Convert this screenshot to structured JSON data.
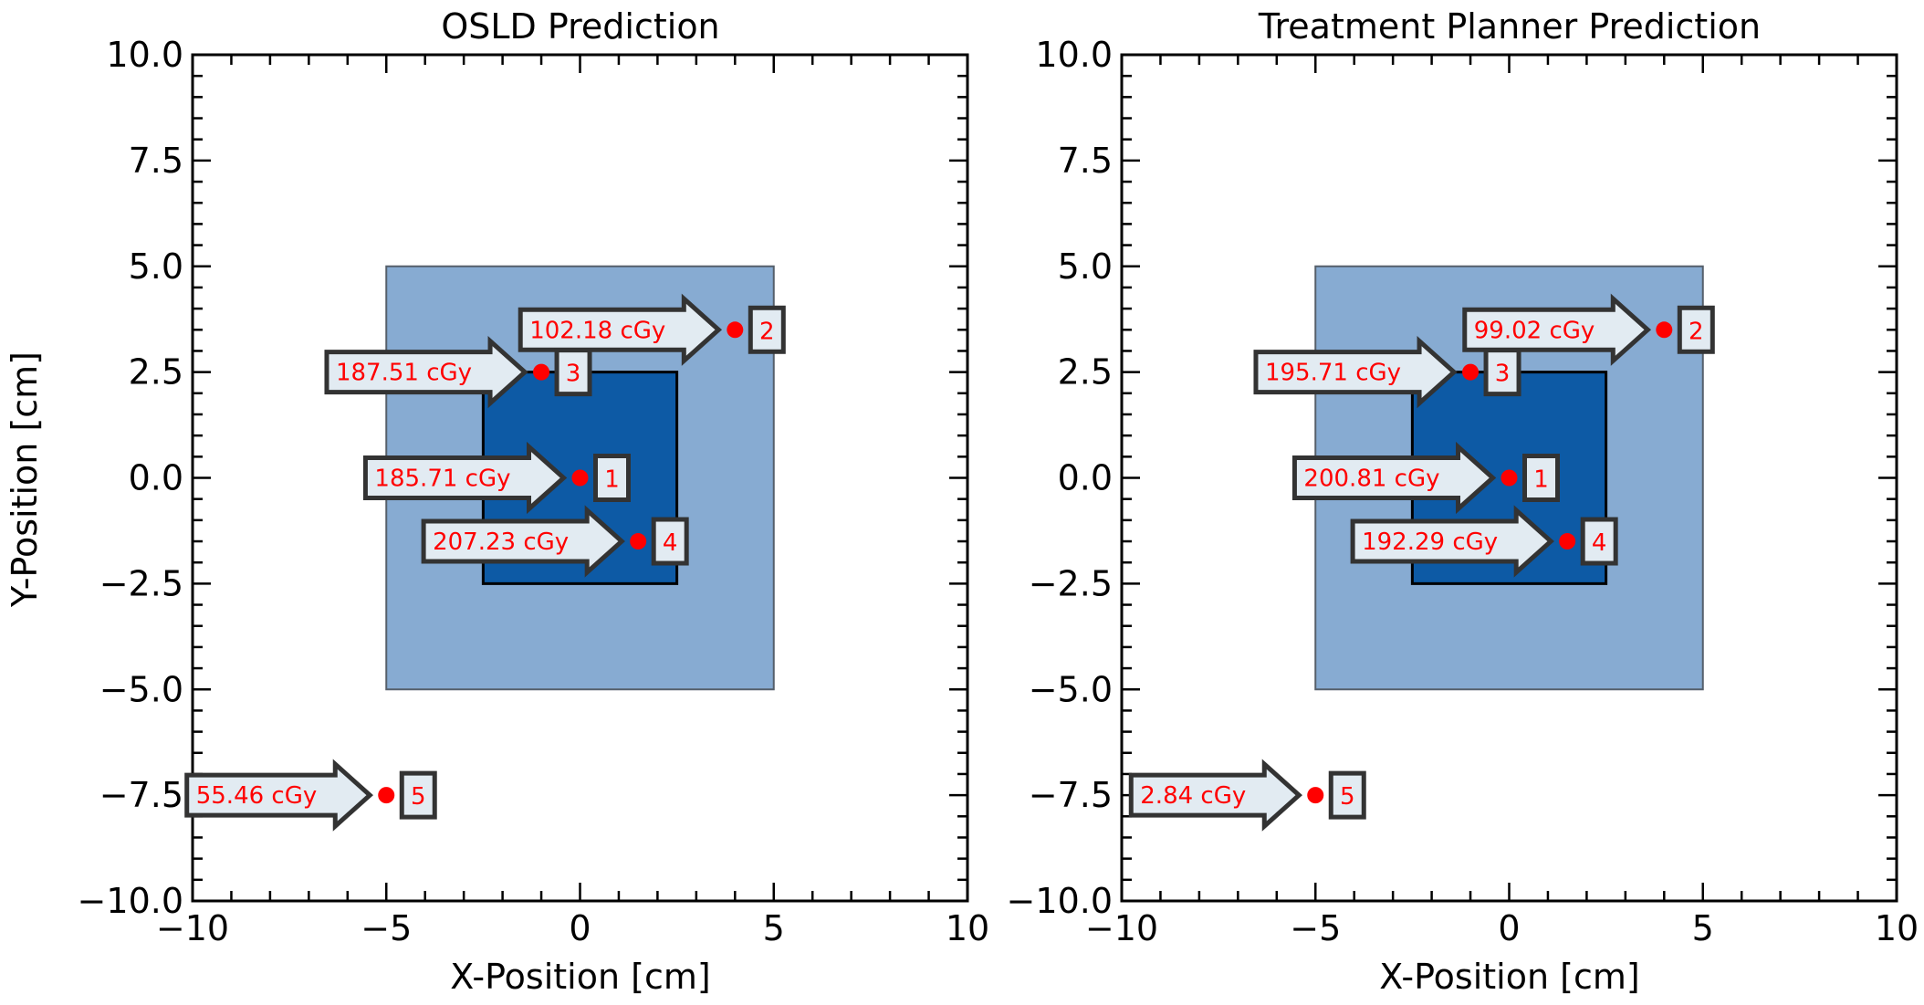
{
  "chart_data": [
    {
      "type": "scatter",
      "title": "OSLD Prediction",
      "xlabel": "X-Position [cm]",
      "ylabel": "Y-Position [cm]",
      "xlim": [
        -10,
        10
      ],
      "ylim": [
        -10,
        10
      ],
      "x_ticks": [
        "−10",
        "−5",
        "0",
        "5",
        "10"
      ],
      "y_ticks": [
        "10.0",
        "7.5",
        "5.0",
        "2.5",
        "0.0",
        "−2.5",
        "−5.0",
        "−7.5",
        "−10.0"
      ],
      "grid": false,
      "regions": [
        {
          "x": [
            -5,
            5
          ],
          "y": [
            -5,
            5
          ],
          "color": "#87abd2"
        },
        {
          "x": [
            -2.5,
            2.5
          ],
          "y": [
            -2.5,
            2.5
          ],
          "color": "#0d5aa5"
        }
      ],
      "points": [
        {
          "id": "1",
          "x": 0,
          "y": 0,
          "label": "185.71 cGy"
        },
        {
          "id": "2",
          "x": 4,
          "y": 3.5,
          "label": "102.18 cGy"
        },
        {
          "id": "3",
          "x": -1,
          "y": 2.5,
          "label": "187.51 cGy"
        },
        {
          "id": "4",
          "x": 1.5,
          "y": -1.5,
          "label": "207.23 cGy"
        },
        {
          "id": "5",
          "x": -5,
          "y": -7.5,
          "label": "55.46 cGy"
        }
      ]
    },
    {
      "type": "scatter",
      "title": "Treatment Planner Prediction",
      "xlabel": "X-Position [cm]",
      "ylabel": "",
      "xlim": [
        -10,
        10
      ],
      "ylim": [
        -10,
        10
      ],
      "x_ticks": [
        "−10",
        "−5",
        "0",
        "5",
        "10"
      ],
      "y_ticks": [
        "10.0",
        "7.5",
        "5.0",
        "2.5",
        "0.0",
        "−2.5",
        "−5.0",
        "−7.5",
        "−10.0"
      ],
      "grid": false,
      "regions": [
        {
          "x": [
            -5,
            5
          ],
          "y": [
            -5,
            5
          ],
          "color": "#87abd2"
        },
        {
          "x": [
            -2.5,
            2.5
          ],
          "y": [
            -2.5,
            2.5
          ],
          "color": "#0d5aa5"
        }
      ],
      "points": [
        {
          "id": "1",
          "x": 0,
          "y": 0,
          "label": "200.81 cGy"
        },
        {
          "id": "2",
          "x": 4,
          "y": 3.5,
          "label": "99.02 cGy"
        },
        {
          "id": "3",
          "x": -1,
          "y": 2.5,
          "label": "195.71 cGy"
        },
        {
          "id": "4",
          "x": 1.5,
          "y": -1.5,
          "label": "192.29 cGy"
        },
        {
          "id": "5",
          "x": -5,
          "y": -7.5,
          "label": "2.84 cGy"
        }
      ]
    }
  ],
  "colors": {
    "point": "#ff0000",
    "annotation_text": "#ff0000",
    "annotation_fill": "#e2ebf2",
    "annotation_edge": "#333333",
    "region_outer": "#87abd2",
    "region_inner": "#0d5aa5"
  }
}
